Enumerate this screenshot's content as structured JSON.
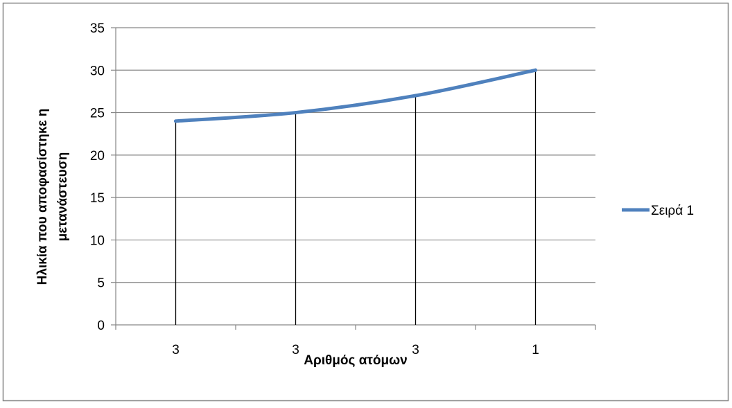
{
  "chart_data": {
    "type": "line",
    "title": "",
    "xlabel": "Αριθμός ατόμων",
    "ylabel_lines": [
      "Ηλικία που αποφασίστηκε η",
      "μετανάστευση"
    ],
    "categories": [
      "3",
      "3",
      "3",
      "1"
    ],
    "series": [
      {
        "name": "Σειρά 1",
        "values": [
          24,
          25,
          27,
          30
        ],
        "color": "#4f81bd"
      }
    ],
    "ylim": [
      0,
      35
    ],
    "yticks": [
      0,
      5,
      10,
      15,
      20,
      25,
      30,
      35
    ],
    "grid": true,
    "drop_lines": true,
    "legend_position": "right"
  },
  "colors": {
    "gridline": "#868686",
    "axis": "#868686",
    "frame": "#868686",
    "drop_line": "#000000"
  }
}
